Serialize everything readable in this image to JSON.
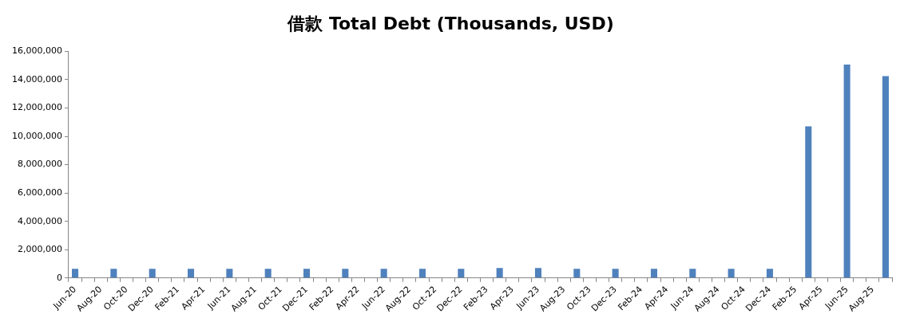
{
  "chart_data": {
    "type": "bar",
    "title": "借款 Total Debt (Thousands, USD)",
    "categories": [
      "Jun-20",
      null,
      "Aug-20",
      null,
      "Oct-20",
      null,
      "Dec-20",
      null,
      "Feb-21",
      null,
      "Apr-21",
      null,
      "Jun-21",
      null,
      "Aug-21",
      null,
      "Oct-21",
      null,
      "Dec-21",
      null,
      "Feb-22",
      null,
      "Apr-22",
      null,
      "Jun-22",
      null,
      "Aug-22",
      null,
      "Oct-22",
      null,
      "Dec-22",
      null,
      "Feb-23",
      null,
      "Apr-23",
      null,
      "Jun-23",
      null,
      "Aug-23",
      null,
      "Oct-23",
      null,
      "Dec-23",
      null,
      "Feb-24",
      null,
      "Apr-24",
      null,
      "Jun-24",
      null,
      "Aug-24",
      null,
      "Oct-24",
      null,
      "Dec-24",
      null,
      "Feb-25",
      null,
      "Apr-25",
      null,
      "Jun-25",
      null,
      "Aug-25",
      null
    ],
    "values": [
      650000,
      null,
      null,
      650000,
      null,
      null,
      650000,
      null,
      null,
      650000,
      null,
      null,
      650000,
      null,
      null,
      650000,
      null,
      null,
      650000,
      null,
      null,
      650000,
      null,
      null,
      650000,
      null,
      null,
      650000,
      null,
      null,
      650000,
      null,
      null,
      700000,
      null,
      null,
      700000,
      null,
      null,
      650000,
      null,
      null,
      650000,
      null,
      null,
      650000,
      null,
      null,
      650000,
      null,
      null,
      650000,
      null,
      null,
      650000,
      null,
      null,
      10700000,
      null,
      null,
      15070000,
      null,
      null,
      14250000
    ],
    "color": "#4f81bd",
    "ylim": [
      0,
      16000000
    ],
    "yticks": [
      0,
      {
        "value": 2000000,
        "label": "2,000,000"
      },
      {
        "value": 4000000,
        "label": "4,000,000"
      },
      {
        "value": 6000000,
        "label": "6,000,000"
      },
      {
        "value": 8000000,
        "label": "8,000,000"
      },
      {
        "value": 10000000,
        "label": "10,000,000"
      },
      {
        "value": 12000000,
        "label": "12,000,000"
      },
      {
        "value": 14000000,
        "label": "14,000,000"
      },
      {
        "value": 16000000,
        "label": "16,000,000"
      }
    ],
    "grid": false,
    "legend": false
  }
}
